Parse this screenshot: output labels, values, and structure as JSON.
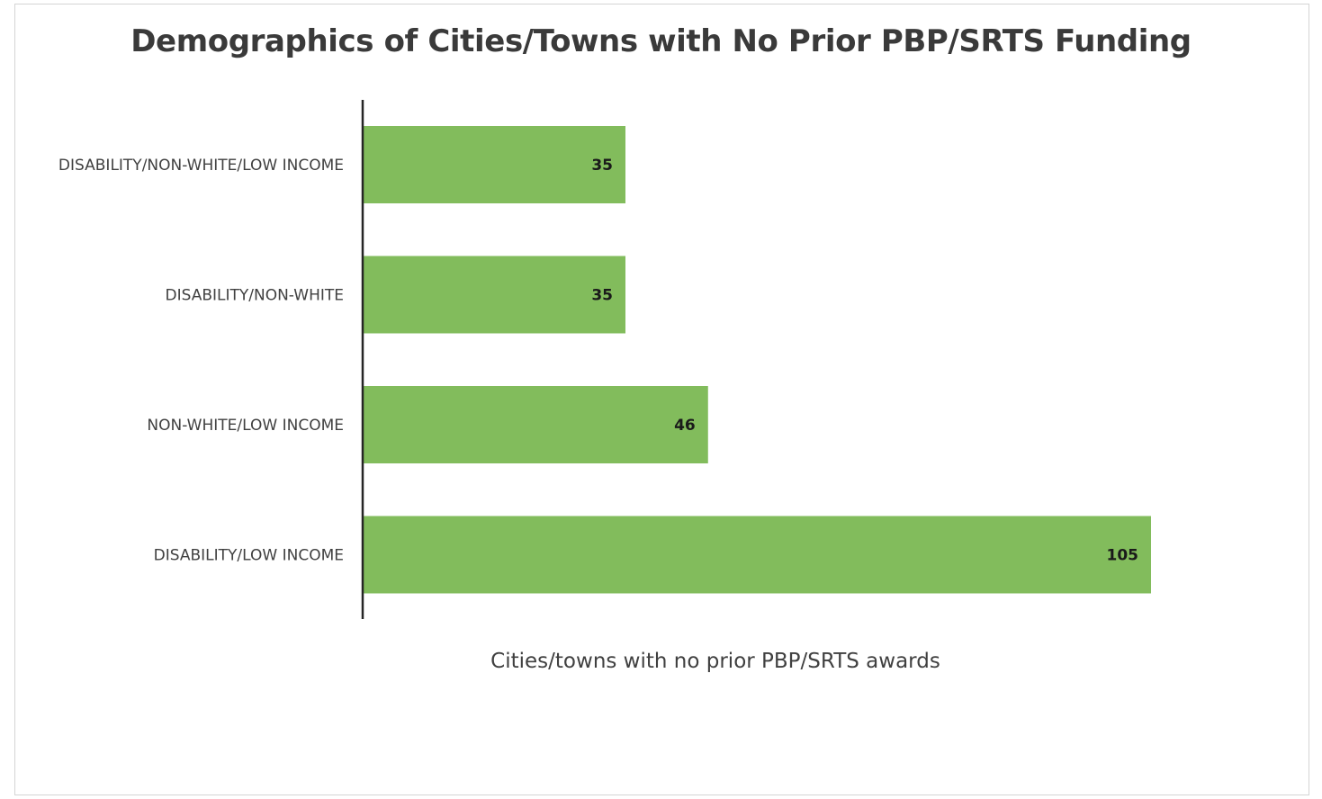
{
  "chart_data": {
    "type": "bar",
    "orientation": "horizontal",
    "title": "Demographics of Cities/Towns with No Prior PBP/SRTS Funding",
    "xlabel": "Cities/towns with no prior PBP/SRTS awards",
    "ylabel": "",
    "categories": [
      "DISABILITY/NON-WHITE/LOW INCOME",
      "DISABILITY/NON-WHITE",
      "NON-WHITE/LOW INCOME",
      "DISABILITY/LOW INCOME"
    ],
    "values": [
      35,
      35,
      46,
      105
    ],
    "data_labels": [
      "35",
      "35",
      "46",
      "105"
    ],
    "xlim": [
      0,
      105
    ],
    "grid": false,
    "legend": "none",
    "bar_color": "#82bc5c",
    "axis_color": "#262626"
  }
}
